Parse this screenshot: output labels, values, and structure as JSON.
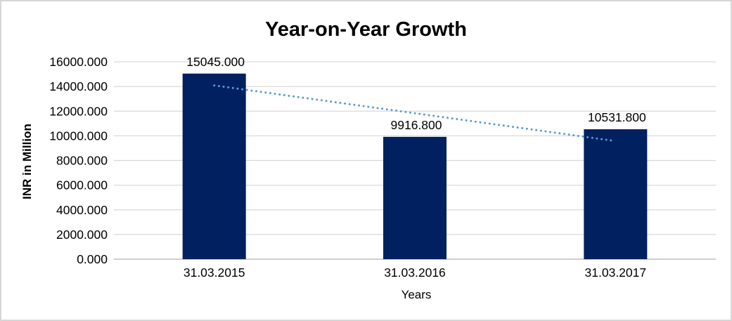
{
  "chart_data": {
    "type": "bar",
    "title": "Year-on-Year Growth",
    "xlabel": "Years",
    "ylabel": "INR in Million",
    "categories": [
      "31.03.2015",
      "31.03.2016",
      "31.03.2017"
    ],
    "values": [
      15045.0,
      9916.8,
      10531.8
    ],
    "data_labels": [
      "15045.000",
      "9916.800",
      "10531.800"
    ],
    "ylim": [
      0,
      16000
    ],
    "ytick_step": 2000,
    "ytick_values": [
      0,
      2000,
      4000,
      6000,
      8000,
      10000,
      12000,
      14000,
      16000
    ],
    "ytick_labels": [
      "0.000",
      "2000.000",
      "4000.000",
      "6000.000",
      "8000.000",
      "10000.000",
      "12000.000",
      "14000.000",
      "16000.000"
    ],
    "grid": true,
    "legend": "none",
    "bar_color": "#002060",
    "gridline_color": "#d9d9d9",
    "axis_line_color": "#bfbfbf",
    "text_color": "#000000",
    "trendline": {
      "style": "dotted",
      "color": "#5b9bd5",
      "points_estimated": [
        14088,
        11831,
        9575
      ]
    }
  }
}
